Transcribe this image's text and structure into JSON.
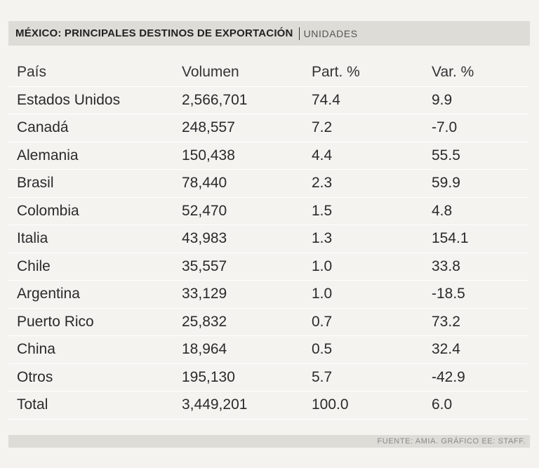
{
  "title": {
    "main": "MÉXICO: PRINCIPALES DESTINOS DE EXPORTACIÓN",
    "unit": "UNIDADES"
  },
  "chart_data": {
    "type": "table",
    "title": "MÉXICO: PRINCIPALES DESTINOS DE EXPORTACIÓN",
    "unit": "UNIDADES",
    "columns": [
      "País",
      "Volumen",
      "Part. %",
      "Var. %"
    ],
    "rows": [
      [
        "Estados Unidos",
        "2,566,701",
        "74.4",
        "9.9"
      ],
      [
        "Canadá",
        "248,557",
        "7.2",
        "-7.0"
      ],
      [
        "Alemania",
        "150,438",
        "4.4",
        "55.5"
      ],
      [
        "Brasil",
        "78,440",
        "2.3",
        "59.9"
      ],
      [
        "Colombia",
        "52,470",
        "1.5",
        "4.8"
      ],
      [
        "Italia",
        "43,983",
        "1.3",
        "154.1"
      ],
      [
        "Chile",
        "35,557",
        "1.0",
        "33.8"
      ],
      [
        "Argentina",
        "33,129",
        "1.0",
        "-18.5"
      ],
      [
        "Puerto Rico",
        "25,832",
        "0.7",
        "73.2"
      ],
      [
        "China",
        "18,964",
        "0.5",
        "32.4"
      ],
      [
        "Otros",
        "195,130",
        "5.7",
        "-42.9"
      ],
      [
        "Total",
        "3,449,201",
        "100.0",
        "6.0"
      ]
    ]
  },
  "footer": {
    "source": "FUENTE: AMIA. GRÁFICO EE: STAFF."
  },
  "colors": {
    "background": "#f4f3f0",
    "bar": "#dedcd7",
    "text": "#2a2a2a"
  }
}
